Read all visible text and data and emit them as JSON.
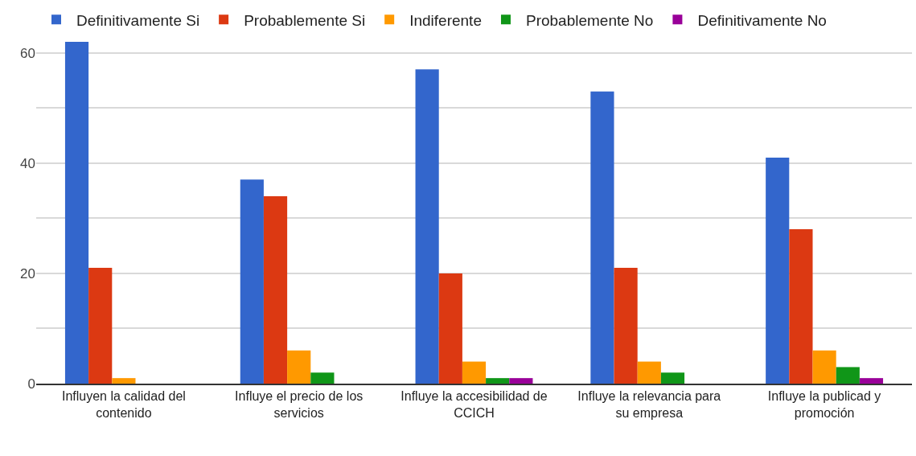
{
  "chart_data": {
    "type": "bar",
    "categories": [
      "Influyen la calidad del contenido",
      "Influye el precio de los servicios",
      "Influye la accesibilidad de CCICH",
      "Influye la relevancia para su empresa",
      "Influye la publicad y promoción"
    ],
    "series": [
      {
        "name": "Definitivamente Si",
        "color": "#3366cc",
        "values": [
          62,
          37,
          57,
          53,
          41
        ]
      },
      {
        "name": "Probablemente Si",
        "color": "#dc3912",
        "values": [
          21,
          34,
          20,
          21,
          28
        ]
      },
      {
        "name": "Indiferente",
        "color": "#ff9900",
        "values": [
          1,
          6,
          4,
          4,
          6
        ]
      },
      {
        "name": "Probablemente No",
        "color": "#109618",
        "values": [
          0,
          2,
          1,
          2,
          3
        ]
      },
      {
        "name": "Definitivamente No",
        "color": "#990099",
        "values": [
          0,
          0,
          1,
          0,
          1
        ]
      }
    ],
    "ylim": [
      0,
      62
    ],
    "yticks": [
      0,
      {
        "value": 10,
        "label": null
      },
      20,
      {
        "value": 30,
        "label": null
      },
      40,
      {
        "value": 50,
        "label": null
      },
      60
    ],
    "grid": "y",
    "legend": "top left"
  }
}
